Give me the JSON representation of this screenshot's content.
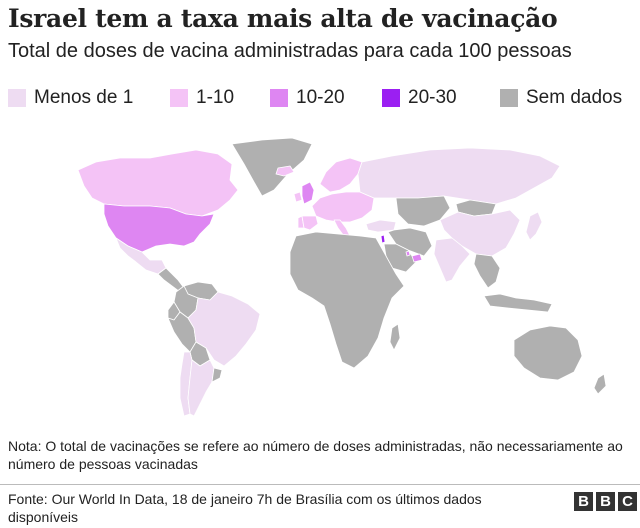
{
  "header": {
    "title": "Israel tem a taxa mais alta de vacinação",
    "subtitle": "Total de doses de vacina administradas para cada 100 pessoas"
  },
  "legend": {
    "items": [
      {
        "label": "Menos de 1",
        "color": "#eedcf2"
      },
      {
        "label": "1-10",
        "color": "#f4c3f6"
      },
      {
        "label": "10-20",
        "color": "#de86f2"
      },
      {
        "label": "20-30",
        "color": "#9b1ff2"
      },
      {
        "label": "Sem dados",
        "color": "#b0b0b0"
      }
    ]
  },
  "map": {
    "regions": [
      {
        "name": "Canada",
        "category": "1-10"
      },
      {
        "name": "United States",
        "category": "10-20"
      },
      {
        "name": "Mexico",
        "category": "Menos de 1"
      },
      {
        "name": "Central America",
        "category": "Sem dados"
      },
      {
        "name": "Venezuela",
        "category": "Sem dados"
      },
      {
        "name": "Colombia",
        "category": "Sem dados"
      },
      {
        "name": "Ecuador",
        "category": "Sem dados"
      },
      {
        "name": "Peru",
        "category": "Sem dados"
      },
      {
        "name": "Bolivia",
        "category": "Sem dados"
      },
      {
        "name": "Brazil",
        "category": "Menos de 1"
      },
      {
        "name": "Chile",
        "category": "Menos de 1"
      },
      {
        "name": "Argentina",
        "category": "Menos de 1"
      },
      {
        "name": "Uruguay",
        "category": "Sem dados"
      },
      {
        "name": "Greenland",
        "category": "Sem dados"
      },
      {
        "name": "Iceland",
        "category": "1-10"
      },
      {
        "name": "United Kingdom",
        "category": "10-20"
      },
      {
        "name": "Ireland",
        "category": "1-10"
      },
      {
        "name": "Scandinavia",
        "category": "1-10"
      },
      {
        "name": "Continental Europe",
        "category": "1-10"
      },
      {
        "name": "Spain",
        "category": "1-10"
      },
      {
        "name": "Portugal",
        "category": "1-10"
      },
      {
        "name": "Italy",
        "category": "1-10"
      },
      {
        "name": "Russia",
        "category": "Menos de 1"
      },
      {
        "name": "Turkey",
        "category": "Menos de 1"
      },
      {
        "name": "Israel",
        "category": "20-30"
      },
      {
        "name": "United Arab Emirates",
        "category": "10-20"
      },
      {
        "name": "Bahrain",
        "category": "10-20"
      },
      {
        "name": "Saudi Arabia",
        "category": "Sem dados"
      },
      {
        "name": "Middle East",
        "category": "Sem dados"
      },
      {
        "name": "Kazakhstan and Central Asia",
        "category": "Sem dados"
      },
      {
        "name": "Mongolia",
        "category": "Sem dados"
      },
      {
        "name": "China",
        "category": "Menos de 1"
      },
      {
        "name": "India",
        "category": "Menos de 1"
      },
      {
        "name": "Southeast Asia",
        "category": "Sem dados"
      },
      {
        "name": "Japan",
        "category": "Menos de 1"
      },
      {
        "name": "Indonesia",
        "category": "Sem dados"
      },
      {
        "name": "Africa",
        "category": "Sem dados"
      },
      {
        "name": "Madagascar",
        "category": "Sem dados"
      },
      {
        "name": "Australia",
        "category": "Sem dados"
      },
      {
        "name": "New Zealand",
        "category": "Sem dados"
      }
    ]
  },
  "note": {
    "text": "Nota: O total de vacinações se refere ao número de doses administradas, não necessariamente ao número de pessoas vacinadas"
  },
  "footer": {
    "source": "Fonte: Our World In Data, 18 de janeiro 7h de Brasília com os últimos dados disponíveis",
    "logo_letters": [
      "B",
      "B",
      "C"
    ],
    "logo_color": "#333333"
  }
}
